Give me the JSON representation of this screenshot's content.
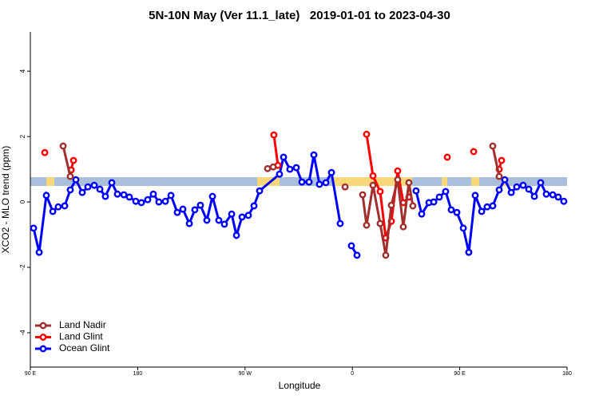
{
  "chart_data": {
    "type": "line",
    "title": "5N-10N May (Ver 11.1_late)   2019-01-01 to 2023-04-30",
    "xlabel": "Longitude",
    "ylabel": "XCO2 - MLO trend (ppm)",
    "xlim": [
      90,
      540
    ],
    "xticks": [
      {
        "value": 90,
        "label": "90 E"
      },
      {
        "value": 180,
        "label": "180"
      },
      {
        "value": 270,
        "label": "90 W"
      },
      {
        "value": 360,
        "label": "0"
      },
      {
        "value": 450,
        "label": "90 E"
      },
      {
        "value": 540,
        "label": "180"
      }
    ],
    "ylim": [
      -5.05,
      5.2
    ],
    "yticks": [
      -4,
      -2,
      0,
      2,
      4
    ],
    "legend": "bottom-left",
    "series": [
      {
        "name": "Land Nadir",
        "color": "#a0302d",
        "x": [
          117.5,
          123.5,
          null,
          288.9,
          293.6,
          null,
          353.9,
          null,
          368.6,
          371.9,
          377.3,
          383.3,
          388.0,
          392.7,
          398.0,
          402.7,
          407.4,
          410.7,
          null,
          477.7,
          483.1
        ],
        "values": [
          1.71,
          0.78,
          null,
          1.02,
          1.07,
          null,
          0.46,
          null,
          0.22,
          -0.71,
          0.51,
          -0.66,
          -1.63,
          -0.1,
          0.68,
          -0.76,
          0.59,
          -0.12,
          null,
          1.71,
          0.78
        ]
      },
      {
        "name": "Land Glint",
        "color": "#ff0000",
        "x": [
          102.1,
          null,
          124.2,
          126.2,
          null,
          294.2,
          297.6,
          null,
          371.9,
          377.3,
          383.3,
          388.0,
          392.7,
          398.0,
          402.7,
          407.4,
          null,
          439.6,
          null,
          461.7,
          null,
          483.1,
          485.1
        ],
        "values": [
          1.51,
          null,
          0.98,
          1.27,
          null,
          2.05,
          1.12,
          null,
          2.07,
          0.8,
          0.32,
          -1.1,
          -0.59,
          0.95,
          -0.02,
          0.15,
          null,
          1.37,
          null,
          1.54,
          null,
          1.0,
          1.27
        ]
      },
      {
        "name": "Ocean Glint",
        "color": "#0000ff",
        "x": [
          92.7,
          97.4,
          103.4,
          108.8,
          113.4,
          118.8,
          123.5,
          128.2,
          133.5,
          138.2,
          143.6,
          148.3,
          152.9,
          158.3,
          163,
          168.4,
          173,
          178.4,
          183.1,
          188.4,
          193.1,
          197.8,
          203.2,
          207.9,
          213.2,
          217.9,
          223.3,
          227.9,
          232.6,
          238,
          242.7,
          248,
          252.7,
          258.8,
          262.8,
          267.5,
          272.8,
          277.5,
          282.2,
          298.9,
          302.3,
          307.6,
          313,
          317.7,
          323.7,
          327.7,
          332.4,
          337.8,
          342.5,
          349.8,
          null,
          359.2,
          363.9,
          null,
          413.4,
          418.1,
          424.2,
          428.2,
          432.9,
          438.2,
          442.9,
          447.6,
          453,
          457.6,
          463,
          468.4,
          473,
          477.7,
          483.1,
          487.8,
          493.2,
          497.8,
          503.2,
          507.9,
          512.6,
          517.9,
          522.6,
          528,
          532.6,
          537.3
        ],
        "values": [
          -0.8,
          -1.54,
          0.2,
          -0.29,
          -0.15,
          -0.12,
          0.37,
          0.68,
          0.29,
          0.46,
          0.51,
          0.39,
          0.17,
          0.59,
          0.24,
          0.22,
          0.15,
          0.02,
          -0.02,
          0.07,
          0.24,
          0,
          0.02,
          0.2,
          -0.32,
          -0.22,
          -0.66,
          -0.24,
          -0.1,
          -0.56,
          0.17,
          -0.56,
          -0.68,
          -0.37,
          -1.02,
          -0.46,
          -0.41,
          -0.12,
          0.34,
          0.85,
          1.37,
          1.0,
          1.05,
          0.61,
          0.61,
          1.44,
          0.54,
          0.59,
          0.9,
          -0.66,
          null,
          -1.34,
          -1.63,
          null,
          0.34,
          -0.37,
          -0.02,
          0,
          0.15,
          0.32,
          -0.24,
          -0.32,
          -0.8,
          -1.54,
          0.2,
          -0.29,
          -0.15,
          -0.12,
          0.37,
          0.68,
          0.29,
          0.46,
          0.51,
          0.39,
          0.17,
          0.59,
          0.24,
          0.22,
          0.15,
          0.02
        ]
      }
    ]
  }
}
